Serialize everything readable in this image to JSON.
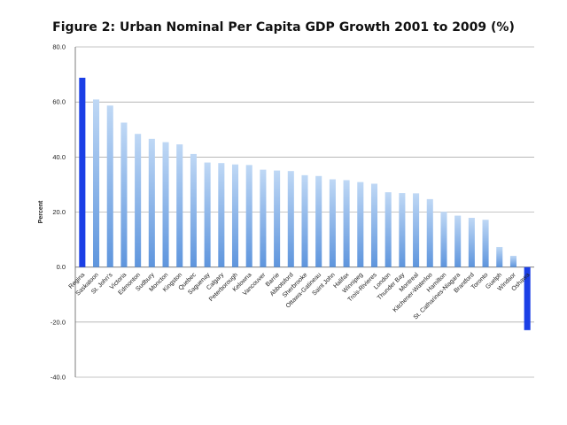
{
  "chart_data": {
    "type": "bar",
    "title": "Figure 2: Urban Nominal Per Capita GDP Growth 2001 to 2009 (%)",
    "xlabel": "",
    "ylabel": "Percent",
    "ylim": [
      -40,
      80
    ],
    "yticks": [
      -40,
      -20,
      0,
      20,
      40,
      60,
      80
    ],
    "ytick_labels": [
      "-40.0",
      "-20.0",
      "0.0",
      "20.0",
      "40.0",
      "60.0",
      "80.0"
    ],
    "grid": true,
    "categories": [
      "Regina",
      "Saskatoon",
      "St. John's",
      "Victoria",
      "Edmonton",
      "Sudbury",
      "Moncton",
      "Kingston",
      "Quebec",
      "Saguenay",
      "Calgary",
      "Peterborough",
      "Kelowna",
      "Vancouver",
      "Barrie",
      "Abbotsford",
      "Sherbrooke",
      "Ottawa-Gatineau",
      "Saint John",
      "Halifax",
      "Winnipeg",
      "Trois-Rivieres",
      "London",
      "Thunder Bay",
      "Montreal",
      "Kitchener-Waterloo",
      "Hamilton",
      "St. Catharines-Niagara",
      "Brantford",
      "Toronto",
      "Guelph",
      "Windsor",
      "Oshawa"
    ],
    "values": [
      68.8,
      60.9,
      58.7,
      52.5,
      48.4,
      46.6,
      45.4,
      44.6,
      41.1,
      38.0,
      37.8,
      37.3,
      37.1,
      35.4,
      35.1,
      34.9,
      33.4,
      33.1,
      31.9,
      31.6,
      30.9,
      30.3,
      27.2,
      26.9,
      26.8,
      24.7,
      20.1,
      18.7,
      17.9,
      17.2,
      7.3,
      4.1,
      -22.9
    ],
    "highlight_indices": [
      0,
      32
    ],
    "colors": {
      "highlight": "#1b3fe6",
      "bar_top": "#bfd8f5",
      "bar_bottom": "#5e95dd",
      "grid": "#8c8c8c",
      "axis": "#6f6f6f"
    }
  }
}
